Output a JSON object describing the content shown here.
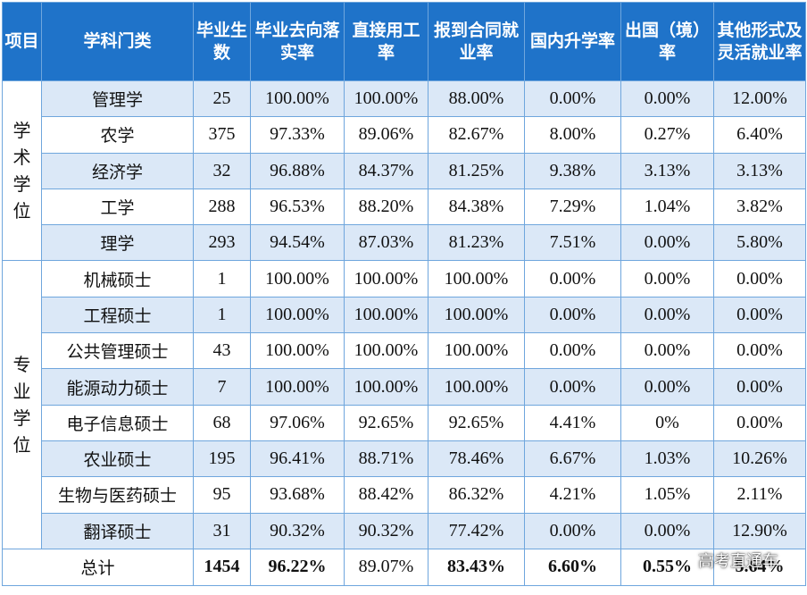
{
  "table": {
    "headers": [
      "项目",
      "学科门类",
      "毕业生数",
      "毕业去向落实率",
      "直接用工率",
      "报到合同就业率",
      "国内升学率",
      "出国（境）率",
      "其他形式及灵活就业率"
    ],
    "groups": [
      {
        "label": "学术学位",
        "rows": [
          [
            "管理学",
            "25",
            "100.00%",
            "100.00%",
            "88.00%",
            "0.00%",
            "0.00%",
            "12.00%"
          ],
          [
            "农学",
            "375",
            "97.33%",
            "89.06%",
            "82.67%",
            "8.00%",
            "0.27%",
            "6.40%"
          ],
          [
            "经济学",
            "32",
            "96.88%",
            "84.37%",
            "81.25%",
            "9.38%",
            "3.13%",
            "3.13%"
          ],
          [
            "工学",
            "288",
            "96.53%",
            "88.20%",
            "84.38%",
            "7.29%",
            "1.04%",
            "3.82%"
          ],
          [
            "理学",
            "293",
            "94.54%",
            "87.03%",
            "81.23%",
            "7.51%",
            "0.00%",
            "5.80%"
          ]
        ]
      },
      {
        "label": "专业学位",
        "rows": [
          [
            "机械硕士",
            "1",
            "100.00%",
            "100.00%",
            "100.00%",
            "0.00%",
            "0.00%",
            "0.00%"
          ],
          [
            "工程硕士",
            "1",
            "100.00%",
            "100.00%",
            "100.00%",
            "0.00%",
            "0.00%",
            "0.00%"
          ],
          [
            "公共管理硕士",
            "43",
            "100.00%",
            "100.00%",
            "100.00%",
            "0.00%",
            "0.00%",
            "0.00%"
          ],
          [
            "能源动力硕士",
            "7",
            "100.00%",
            "100.00%",
            "100.00%",
            "0.00%",
            "0.00%",
            "0.00%"
          ],
          [
            "电子信息硕士",
            "68",
            "97.06%",
            "92.65%",
            "92.65%",
            "4.41%",
            "0%",
            "0.00%"
          ],
          [
            "农业硕士",
            "195",
            "96.41%",
            "88.71%",
            "78.46%",
            "6.67%",
            "1.03%",
            "10.26%"
          ],
          [
            "生物与医药硕士",
            "95",
            "93.68%",
            "88.42%",
            "86.32%",
            "4.21%",
            "1.05%",
            "2.11%"
          ],
          [
            "翻译硕士",
            "31",
            "90.32%",
            "90.32%",
            "77.42%",
            "0.00%",
            "0.00%",
            "12.90%"
          ]
        ]
      }
    ],
    "total": [
      "总计",
      "1454",
      "96.22%",
      "89.07%",
      "83.43%",
      "6.60%",
      "0.55%",
      "5.64%"
    ]
  },
  "watermark": "高考直通车",
  "colors": {
    "header_bg": "#1f73c9",
    "row_shade": "#dbe8f7",
    "border": "#6fa6dd"
  }
}
